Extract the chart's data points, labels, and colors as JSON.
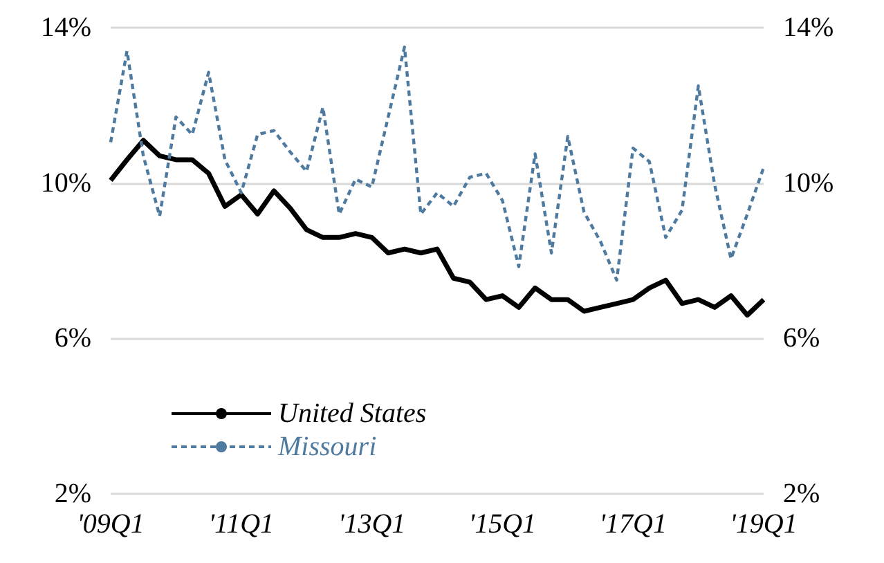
{
  "chart_data": {
    "type": "line",
    "categories": [
      "'09Q1",
      null,
      null,
      null,
      null,
      null,
      null,
      null,
      "'11Q1",
      null,
      null,
      null,
      null,
      null,
      null,
      null,
      "'13Q1",
      null,
      null,
      null,
      null,
      null,
      null,
      null,
      "'15Q1",
      null,
      null,
      null,
      null,
      null,
      null,
      null,
      "'17Q1",
      null,
      null,
      null,
      null,
      null,
      null,
      null,
      "'19Q1"
    ],
    "series": [
      {
        "name": "United States",
        "color": "#000000",
        "line_style": "solid",
        "values": [
          10.07,
          10.6,
          11.1,
          10.7,
          10.6,
          10.6,
          10.25,
          9.4,
          9.7,
          9.2,
          9.8,
          9.35,
          8.8,
          8.6,
          8.6,
          8.7,
          8.6,
          8.2,
          8.3,
          8.2,
          8.3,
          7.55,
          7.45,
          7.0,
          7.1,
          6.8,
          7.3,
          7.0,
          7.0,
          6.7,
          6.8,
          6.9,
          7.0,
          7.3,
          7.5,
          6.9,
          7.0,
          6.8,
          7.1,
          6.6,
          7.0
        ]
      },
      {
        "name": "Missouri",
        "color": "#4e7aa0",
        "line_style": "dashed",
        "values": [
          11.05,
          13.4,
          10.7,
          9.15,
          11.7,
          11.25,
          12.85,
          10.6,
          9.75,
          11.25,
          11.35,
          10.8,
          10.3,
          11.95,
          9.2,
          10.1,
          9.9,
          11.7,
          13.5,
          9.2,
          9.75,
          9.4,
          10.15,
          10.25,
          9.55,
          7.85,
          10.75,
          8.2,
          11.2,
          9.25,
          8.5,
          7.5,
          10.9,
          10.55,
          8.6,
          9.3,
          12.5,
          9.95,
          8.05,
          9.2,
          10.4
        ]
      }
    ],
    "ylim": [
      2,
      14
    ],
    "yticks": [
      {
        "value": 2,
        "label": "2%"
      },
      {
        "value": 6,
        "label": "6%"
      },
      {
        "value": 10,
        "label": "10%"
      },
      {
        "value": 14,
        "label": "14%"
      }
    ],
    "y2lim": [
      2,
      14
    ],
    "y2ticks": [
      {
        "value": 2,
        "label": "2%"
      },
      {
        "value": 6,
        "label": "6%"
      },
      {
        "value": 10,
        "label": "10%"
      },
      {
        "value": 14,
        "label": "14%"
      }
    ],
    "grid": "y",
    "legend": "bottom left",
    "marker": "none"
  }
}
